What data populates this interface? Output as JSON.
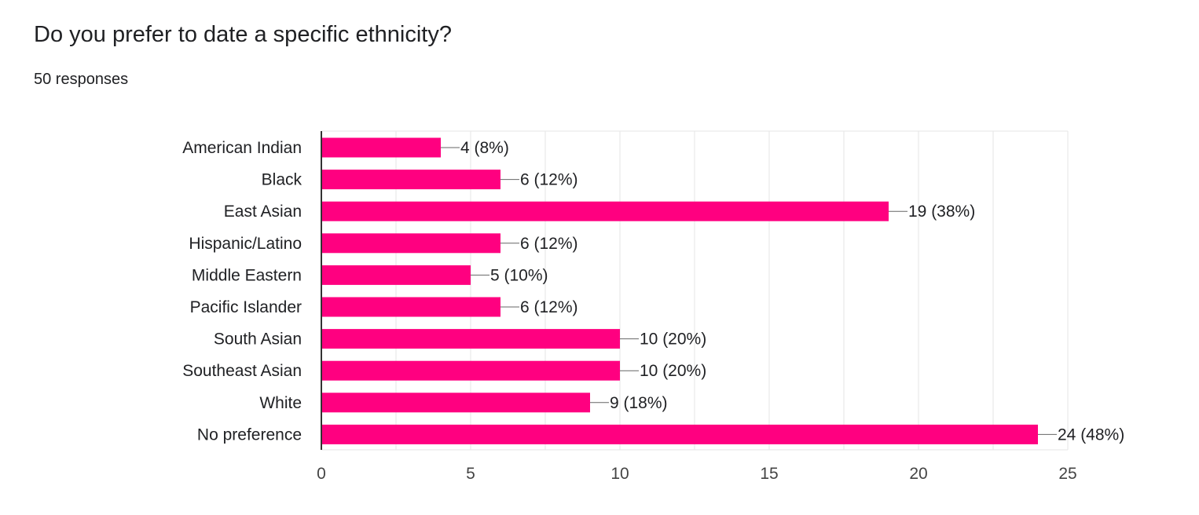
{
  "question": {
    "title": "Do you prefer to date a specific ethnicity?",
    "responses": "50 responses"
  },
  "chart_data": {
    "type": "bar",
    "orientation": "horizontal",
    "title": "Do you prefer to date a specific ethnicity?",
    "subtitle": "50 responses",
    "categories": [
      "American Indian",
      "Black",
      "East Asian",
      "Hispanic/Latino",
      "Middle Eastern",
      "Pacific Islander",
      "South Asian",
      "Southeast Asian",
      "White",
      "No preference"
    ],
    "values": [
      4,
      6,
      19,
      6,
      5,
      6,
      10,
      10,
      9,
      24
    ],
    "data_labels": [
      "4 (8%)",
      "6 (12%)",
      "19 (38%)",
      "6 (12%)",
      "5 (10%)",
      "6 (12%)",
      "10 (20%)",
      "10 (20%)",
      "9 (18%)",
      "24 (48%)"
    ],
    "xlim": [
      0,
      25
    ],
    "xticks": [
      0,
      5,
      10,
      15,
      20,
      25
    ],
    "grid": true,
    "legend": "none",
    "bar_color": "#ff0080"
  }
}
